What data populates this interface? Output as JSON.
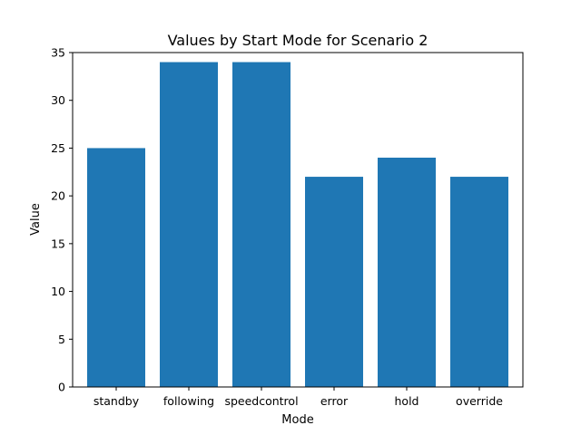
{
  "chart_data": {
    "type": "bar",
    "title": "Values by Start Mode for Scenario 2",
    "xlabel": "Mode",
    "ylabel": "Value",
    "categories": [
      "standby",
      "following",
      "speedcontrol",
      "error",
      "hold",
      "override"
    ],
    "values": [
      25,
      34,
      34,
      22,
      24,
      22
    ],
    "ylim": [
      0,
      35
    ],
    "yticks": [
      0,
      5,
      10,
      15,
      20,
      25,
      30,
      35
    ],
    "grid": false,
    "legend": false,
    "colors": {
      "bar": "#1f77b4",
      "axis": "#000000",
      "background": "#ffffff"
    }
  }
}
